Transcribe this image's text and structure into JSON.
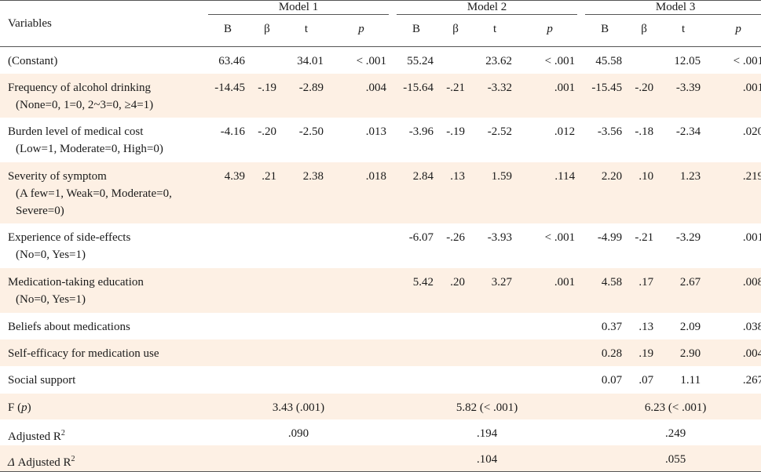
{
  "header": {
    "variables": "Variables",
    "models": [
      "Model 1",
      "Model 2",
      "Model 3"
    ],
    "subcols": [
      "B",
      "β",
      "t",
      "p"
    ]
  },
  "rows": [
    {
      "label": "(Constant)",
      "notes": [],
      "m1": [
        "63.46",
        "",
        "34.01",
        "< .001"
      ],
      "m2": [
        "55.24",
        "",
        "23.62",
        "< .001"
      ],
      "m3": [
        "45.58",
        "",
        "12.05",
        "< .001"
      ]
    },
    {
      "label": "Frequency of alcohol drinking",
      "notes": [
        "(None=0, 1=0, 2~3=0, ≥4=1)"
      ],
      "m1": [
        "-14.45",
        "-.19",
        "-2.89",
        ".004"
      ],
      "m2": [
        "-15.64",
        "-.21",
        "-3.32",
        ".001"
      ],
      "m3": [
        "-15.45",
        "-.20",
        "-3.39",
        ".001"
      ]
    },
    {
      "label": "Burden level of medical cost",
      "notes": [
        "(Low=1, Moderate=0, High=0)"
      ],
      "m1": [
        "-4.16",
        "-.20",
        "-2.50",
        ".013"
      ],
      "m2": [
        "-3.96",
        "-.19",
        "-2.52",
        ".012"
      ],
      "m3": [
        "-3.56",
        "-.18",
        "-2.34",
        ".020"
      ]
    },
    {
      "label": "Severity of symptom",
      "notes": [
        "(A few=1, Weak=0, Moderate=0,",
        "Severe=0)"
      ],
      "m1": [
        "4.39",
        ".21",
        "2.38",
        ".018"
      ],
      "m2": [
        "2.84",
        ".13",
        "1.59",
        ".114"
      ],
      "m3": [
        "2.20",
        ".10",
        "1.23",
        ".219"
      ]
    },
    {
      "label": "Experience of side-effects",
      "notes": [
        "(No=0, Yes=1)"
      ],
      "m1": [
        "",
        "",
        "",
        ""
      ],
      "m2": [
        "-6.07",
        "-.26",
        "-3.93",
        "< .001"
      ],
      "m3": [
        "-4.99",
        "-.21",
        "-3.29",
        ".001"
      ]
    },
    {
      "label": "Medication-taking education",
      "notes": [
        "(No=0, Yes=1)"
      ],
      "m1": [
        "",
        "",
        "",
        ""
      ],
      "m2": [
        "5.42",
        ".20",
        "3.27",
        ".001"
      ],
      "m3": [
        "4.58",
        ".17",
        "2.67",
        ".008"
      ]
    },
    {
      "label": "Beliefs about medications",
      "notes": [],
      "m1": [
        "",
        "",
        "",
        ""
      ],
      "m2": [
        "",
        "",
        "",
        ""
      ],
      "m3": [
        "0.37",
        ".13",
        "2.09",
        ".038"
      ]
    },
    {
      "label": "Self-efficacy for medication use",
      "notes": [],
      "m1": [
        "",
        "",
        "",
        ""
      ],
      "m2": [
        "",
        "",
        "",
        ""
      ],
      "m3": [
        "0.28",
        ".19",
        "2.90",
        ".004"
      ]
    },
    {
      "label": "Social support",
      "notes": [],
      "m1": [
        "",
        "",
        "",
        ""
      ],
      "m2": [
        "",
        "",
        "",
        ""
      ],
      "m3": [
        "0.07",
        ".07",
        "1.11",
        ".267"
      ]
    }
  ],
  "stats": {
    "f": {
      "label_prefix": "F (",
      "label_p": "p",
      "label_suffix": ")",
      "values": [
        "3.43 (.001)",
        "5.82 (< .001)",
        "6.23 (< .001)"
      ]
    },
    "adj_r2": {
      "label": "Adjusted R",
      "sup": "2",
      "values": [
        ".090",
        ".194",
        ".249"
      ]
    },
    "delta_r2": {
      "delta": "Δ",
      "label": " Adjusted R",
      "sup": "2",
      "values": [
        "",
        ".104",
        ".055"
      ]
    }
  },
  "colors": {
    "shade": "#fdf0e4",
    "rule": "#555555"
  }
}
